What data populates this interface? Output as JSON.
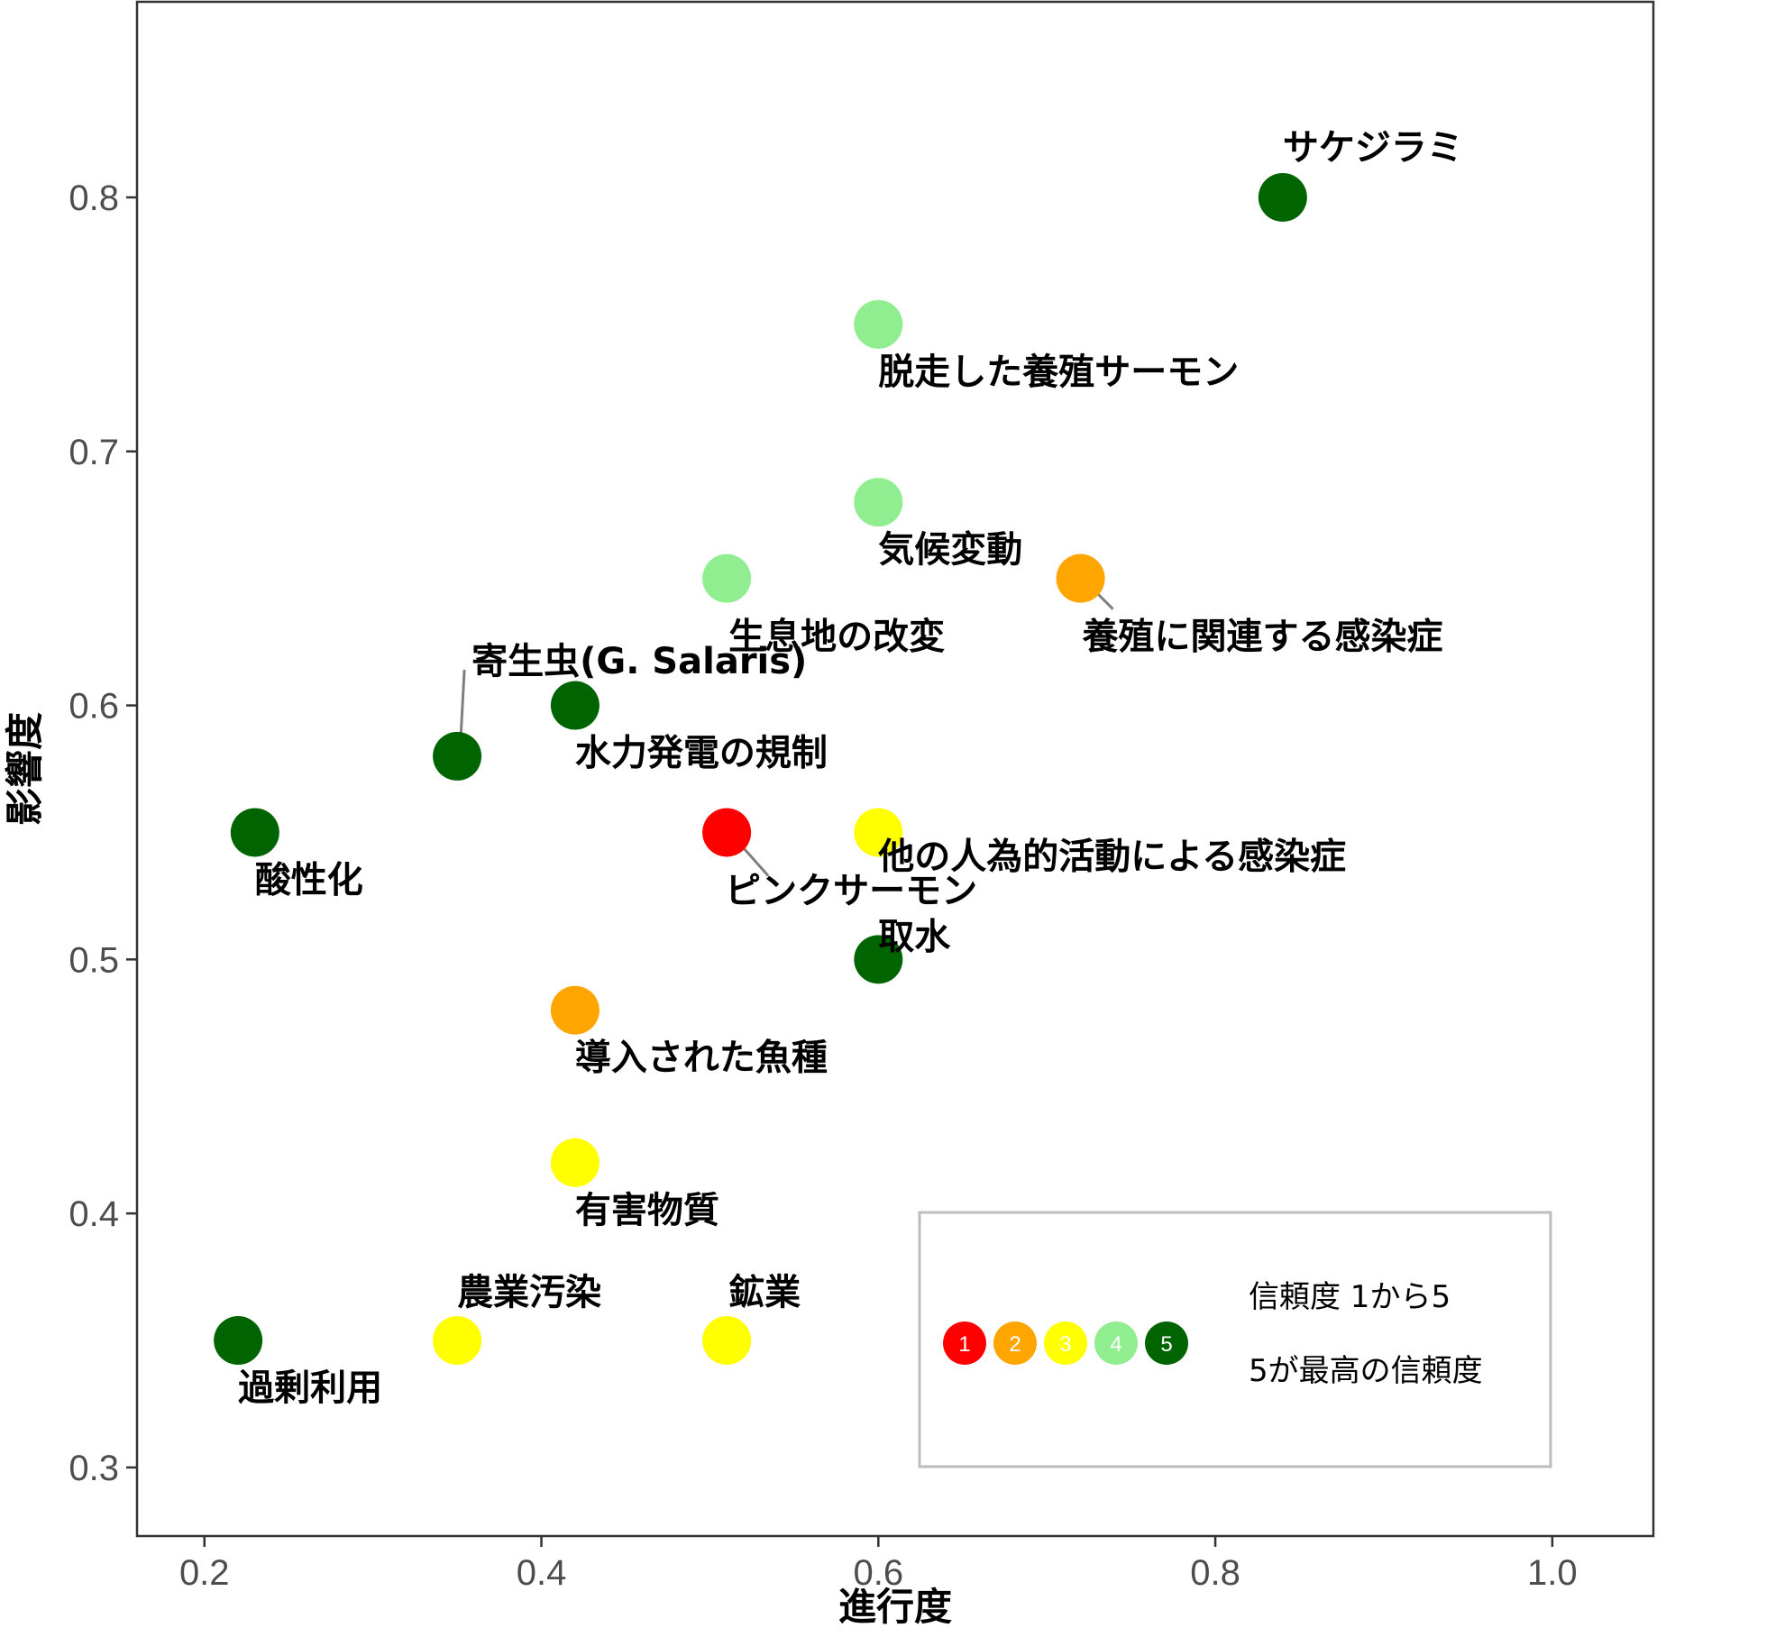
{
  "chart_data": {
    "type": "scatter",
    "xlabel": "進行度",
    "ylabel": "影響度",
    "xlim": [
      0.16,
      1.06
    ],
    "ylim": [
      0.273,
      0.877
    ],
    "xticks": [
      "0.2",
      "0.4",
      "0.6",
      "0.8",
      "1.0"
    ],
    "yticks": [
      "0.3",
      "0.4",
      "0.5",
      "0.6",
      "0.7",
      "0.8"
    ],
    "grid": false,
    "confidence_colors": {
      "1": "#ff0000",
      "2": "#ffa500",
      "3": "#ffff00",
      "4": "#90ee90",
      "5": "#006400"
    },
    "points": [
      {
        "label": "サケジラミ",
        "x": 0.84,
        "y": 0.8,
        "confidence": 5
      },
      {
        "label": "脱走した養殖サーモン",
        "x": 0.6,
        "y": 0.75,
        "confidence": 4
      },
      {
        "label": "気候変動",
        "x": 0.6,
        "y": 0.68,
        "confidence": 4
      },
      {
        "label": "生息地の改変",
        "x": 0.51,
        "y": 0.65,
        "confidence": 4
      },
      {
        "label": "養殖に関連する感染症",
        "x": 0.72,
        "y": 0.65,
        "confidence": 2
      },
      {
        "label": "水力発電の規制",
        "x": 0.42,
        "y": 0.6,
        "confidence": 5
      },
      {
        "label": "寄生虫(G. Salaris)",
        "x": 0.35,
        "y": 0.58,
        "confidence": 5
      },
      {
        "label": "酸性化",
        "x": 0.23,
        "y": 0.55,
        "confidence": 5
      },
      {
        "label": "ピンクサーモン",
        "x": 0.51,
        "y": 0.55,
        "confidence": 1
      },
      {
        "label": "他の人為的活動による感染症",
        "x": 0.6,
        "y": 0.55,
        "confidence": 3
      },
      {
        "label": "取水",
        "x": 0.6,
        "y": 0.5,
        "confidence": 5
      },
      {
        "label": "導入された魚種",
        "x": 0.42,
        "y": 0.48,
        "confidence": 2
      },
      {
        "label": "有害物質",
        "x": 0.42,
        "y": 0.42,
        "confidence": 3
      },
      {
        "label": "過剰利用",
        "x": 0.22,
        "y": 0.35,
        "confidence": 5
      },
      {
        "label": "農業汚染",
        "x": 0.35,
        "y": 0.35,
        "confidence": 3
      },
      {
        "label": "鉱業",
        "x": 0.51,
        "y": 0.35,
        "confidence": 3
      }
    ],
    "legend": {
      "line1": "信頼度 1から5",
      "line2": "5が最高の信頼度",
      "levels": [
        "1",
        "2",
        "3",
        "4",
        "5"
      ]
    }
  }
}
